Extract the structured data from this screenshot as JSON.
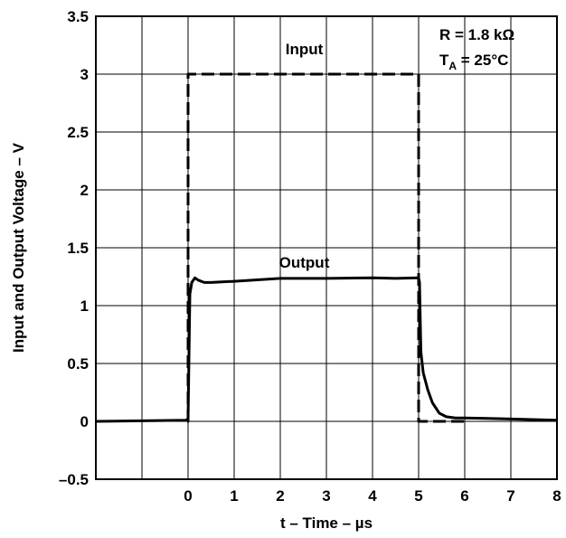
{
  "chart_data": {
    "type": "line",
    "xlabel": "t – Time – µs",
    "ylabel": "Input and Output Voltage – V",
    "xlim": [
      -2,
      8
    ],
    "ylim": [
      -0.5,
      3.5
    ],
    "x_ticks": [
      0,
      1,
      2,
      3,
      4,
      5,
      6,
      7,
      8
    ],
    "x_tick_labels": [
      "0",
      "1",
      "2",
      "3",
      "4",
      "5",
      "6",
      "7",
      "8"
    ],
    "x_grid": [
      -2,
      -1,
      0,
      1,
      2,
      3,
      4,
      5,
      6,
      7,
      8
    ],
    "y_ticks": [
      -0.5,
      0,
      0.5,
      1,
      1.5,
      2,
      2.5,
      3,
      3.5
    ],
    "y_tick_labels": [
      "–0.5",
      "0",
      "0.5",
      "1",
      "1.5",
      "2",
      "2.5",
      "3",
      "3.5"
    ],
    "grid": true,
    "series": [
      {
        "name": "Input",
        "style": "dashed",
        "x": [
          -0.02,
          0.0,
          0.0,
          5.0,
          5.0,
          6.0
        ],
        "y": [
          0.0,
          0.0,
          3.0,
          3.0,
          0.0,
          0.0
        ]
      },
      {
        "name": "Output",
        "style": "solid",
        "x": [
          -2.0,
          -1.0,
          -0.05,
          0.0,
          0.04,
          0.08,
          0.15,
          0.22,
          0.35,
          0.5,
          1.0,
          2.0,
          3.0,
          4.0,
          4.5,
          5.0,
          5.02,
          5.05,
          5.1,
          5.2,
          5.3,
          5.45,
          5.6,
          5.8,
          6.0,
          6.5,
          7.0,
          8.0
        ],
        "y": [
          0.0,
          0.005,
          0.01,
          0.02,
          1.1,
          1.2,
          1.24,
          1.22,
          1.2,
          1.2,
          1.21,
          1.235,
          1.235,
          1.24,
          1.235,
          1.24,
          1.2,
          0.6,
          0.42,
          0.27,
          0.16,
          0.07,
          0.04,
          0.03,
          0.03,
          0.025,
          0.02,
          0.01
        ]
      }
    ],
    "annotations": [
      {
        "text": "Input",
        "x": 2.52,
        "y": 3.17
      },
      {
        "text": "Output",
        "x": 2.52,
        "y": 1.33
      }
    ],
    "conditions": {
      "line1": "R = 1.8 kΩ",
      "line2_base": "T",
      "line2_sub": "A",
      "line2_rest": " = 25°C"
    }
  }
}
